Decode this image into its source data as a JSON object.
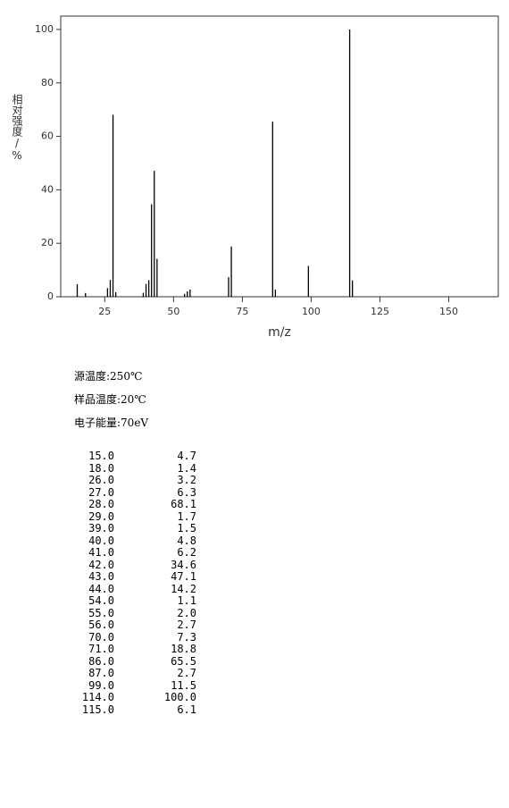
{
  "chart_data": {
    "type": "bar",
    "xlabel": "m/z",
    "ylabel": "相对强度/%",
    "x": [
      15,
      18,
      26,
      27,
      28,
      29,
      39,
      40,
      41,
      42,
      43,
      44,
      54,
      55,
      56,
      70,
      71,
      86,
      87,
      99,
      114,
      115
    ],
    "values": [
      4.7,
      1.4,
      3.2,
      6.3,
      68.1,
      1.7,
      1.5,
      4.8,
      6.2,
      34.6,
      47.1,
      14.2,
      1.1,
      2.0,
      2.7,
      7.3,
      18.8,
      65.5,
      2.7,
      11.5,
      100.0,
      6.1
    ],
    "color": "#000000",
    "xlim": [
      9,
      168
    ],
    "ylim": [
      0,
      105
    ],
    "xticks": [
      25,
      50,
      75,
      100,
      125,
      150
    ],
    "yticks": [
      0,
      20,
      40,
      60,
      80,
      100
    ]
  },
  "conditions": [
    "源温度:250℃",
    "样品温度:20℃",
    "电子能量:70eV"
  ],
  "table": {
    "rows": [
      [
        "15.0",
        "4.7"
      ],
      [
        "18.0",
        "1.4"
      ],
      [
        "26.0",
        "3.2"
      ],
      [
        "27.0",
        "6.3"
      ],
      [
        "28.0",
        "68.1"
      ],
      [
        "29.0",
        "1.7"
      ],
      [
        "39.0",
        "1.5"
      ],
      [
        "40.0",
        "4.8"
      ],
      [
        "41.0",
        "6.2"
      ],
      [
        "42.0",
        "34.6"
      ],
      [
        "43.0",
        "47.1"
      ],
      [
        "44.0",
        "14.2"
      ],
      [
        "54.0",
        "1.1"
      ],
      [
        "55.0",
        "2.0"
      ],
      [
        "56.0",
        "2.7"
      ],
      [
        "70.0",
        "7.3"
      ],
      [
        "71.0",
        "18.8"
      ],
      [
        "86.0",
        "65.5"
      ],
      [
        "87.0",
        "2.7"
      ],
      [
        "99.0",
        "11.5"
      ],
      [
        "114.0",
        "100.0"
      ],
      [
        "115.0",
        "6.1"
      ]
    ]
  }
}
